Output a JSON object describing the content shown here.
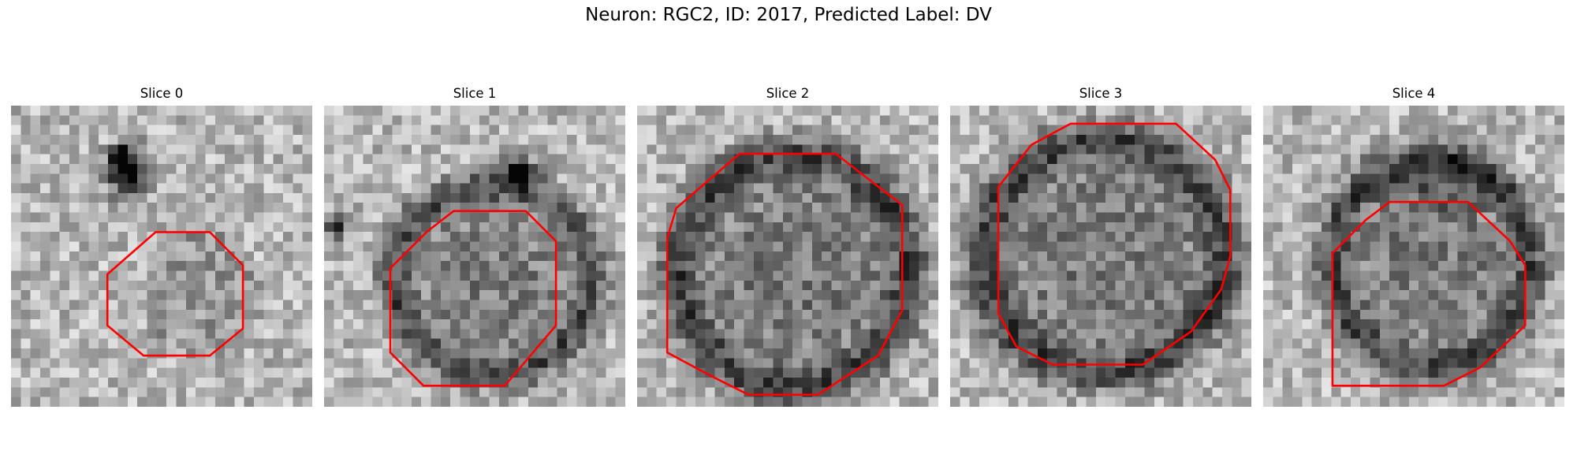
{
  "figure": {
    "suptitle": "Neuron: RGC2, ID: 2017, Predicted Label: DV"
  },
  "colors": {
    "contour": "#ff0000"
  },
  "panels": [
    {
      "title": "Slice 0",
      "seed": 11,
      "blobs": [
        [
          0.63,
          0.62,
          0.18,
          0.22,
          -0.3,
          1,
          false
        ],
        [
          0.39,
          0.22,
          0.08,
          0.09,
          -0.75,
          2,
          true
        ],
        [
          0.36,
          0.16,
          0.04,
          0.03,
          -0.9,
          1,
          true
        ]
      ],
      "contour": [
        [
          0.48,
          0.42
        ],
        [
          0.66,
          0.42
        ],
        [
          0.77,
          0.53
        ],
        [
          0.77,
          0.74
        ],
        [
          0.66,
          0.83
        ],
        [
          0.44,
          0.83
        ],
        [
          0.32,
          0.73
        ],
        [
          0.32,
          0.56
        ]
      ]
    },
    {
      "title": "Slice 1",
      "seed": 23,
      "blobs": [
        [
          0.56,
          0.58,
          0.36,
          0.34,
          -0.5,
          6,
          false
        ],
        [
          0.65,
          0.22,
          0.06,
          0.05,
          -0.9,
          1,
          true
        ],
        [
          0.04,
          0.4,
          0.05,
          0.05,
          -0.6,
          1,
          true
        ]
      ],
      "contour": [
        [
          0.43,
          0.35
        ],
        [
          0.67,
          0.35
        ],
        [
          0.77,
          0.45
        ],
        [
          0.77,
          0.73
        ],
        [
          0.6,
          0.93
        ],
        [
          0.33,
          0.93
        ],
        [
          0.22,
          0.82
        ],
        [
          0.22,
          0.54
        ],
        [
          0.34,
          0.42
        ]
      ]
    },
    {
      "title": "Slice 2",
      "seed": 37,
      "blobs": [
        [
          0.52,
          0.55,
          0.42,
          0.42,
          -0.55,
          6,
          false
        ]
      ],
      "contour": [
        [
          0.34,
          0.16
        ],
        [
          0.66,
          0.16
        ],
        [
          0.75,
          0.23
        ],
        [
          0.88,
          0.33
        ],
        [
          0.88,
          0.68
        ],
        [
          0.8,
          0.83
        ],
        [
          0.6,
          0.96
        ],
        [
          0.37,
          0.96
        ],
        [
          0.25,
          0.9
        ],
        [
          0.1,
          0.82
        ],
        [
          0.1,
          0.44
        ],
        [
          0.13,
          0.34
        ]
      ]
    },
    {
      "title": "Slice 3",
      "seed": 51,
      "blobs": [
        [
          0.51,
          0.5,
          0.44,
          0.42,
          -0.55,
          6,
          false
        ]
      ],
      "contour": [
        [
          0.4,
          0.06
        ],
        [
          0.75,
          0.06
        ],
        [
          0.88,
          0.18
        ],
        [
          0.93,
          0.28
        ],
        [
          0.93,
          0.5
        ],
        [
          0.9,
          0.61
        ],
        [
          0.8,
          0.75
        ],
        [
          0.64,
          0.86
        ],
        [
          0.34,
          0.86
        ],
        [
          0.22,
          0.8
        ],
        [
          0.16,
          0.69
        ],
        [
          0.16,
          0.27
        ],
        [
          0.27,
          0.13
        ]
      ]
    },
    {
      "title": "Slice 4",
      "seed": 67,
      "blobs": [
        [
          0.56,
          0.52,
          0.36,
          0.38,
          -0.55,
          6,
          false
        ],
        [
          0.6,
          0.27,
          0.18,
          0.1,
          -0.35,
          1,
          false
        ]
      ],
      "contour": [
        [
          0.42,
          0.32
        ],
        [
          0.68,
          0.32
        ],
        [
          0.82,
          0.45
        ],
        [
          0.87,
          0.53
        ],
        [
          0.87,
          0.73
        ],
        [
          0.72,
          0.87
        ],
        [
          0.6,
          0.93
        ],
        [
          0.23,
          0.93
        ],
        [
          0.23,
          0.49
        ],
        [
          0.34,
          0.38
        ]
      ]
    }
  ]
}
